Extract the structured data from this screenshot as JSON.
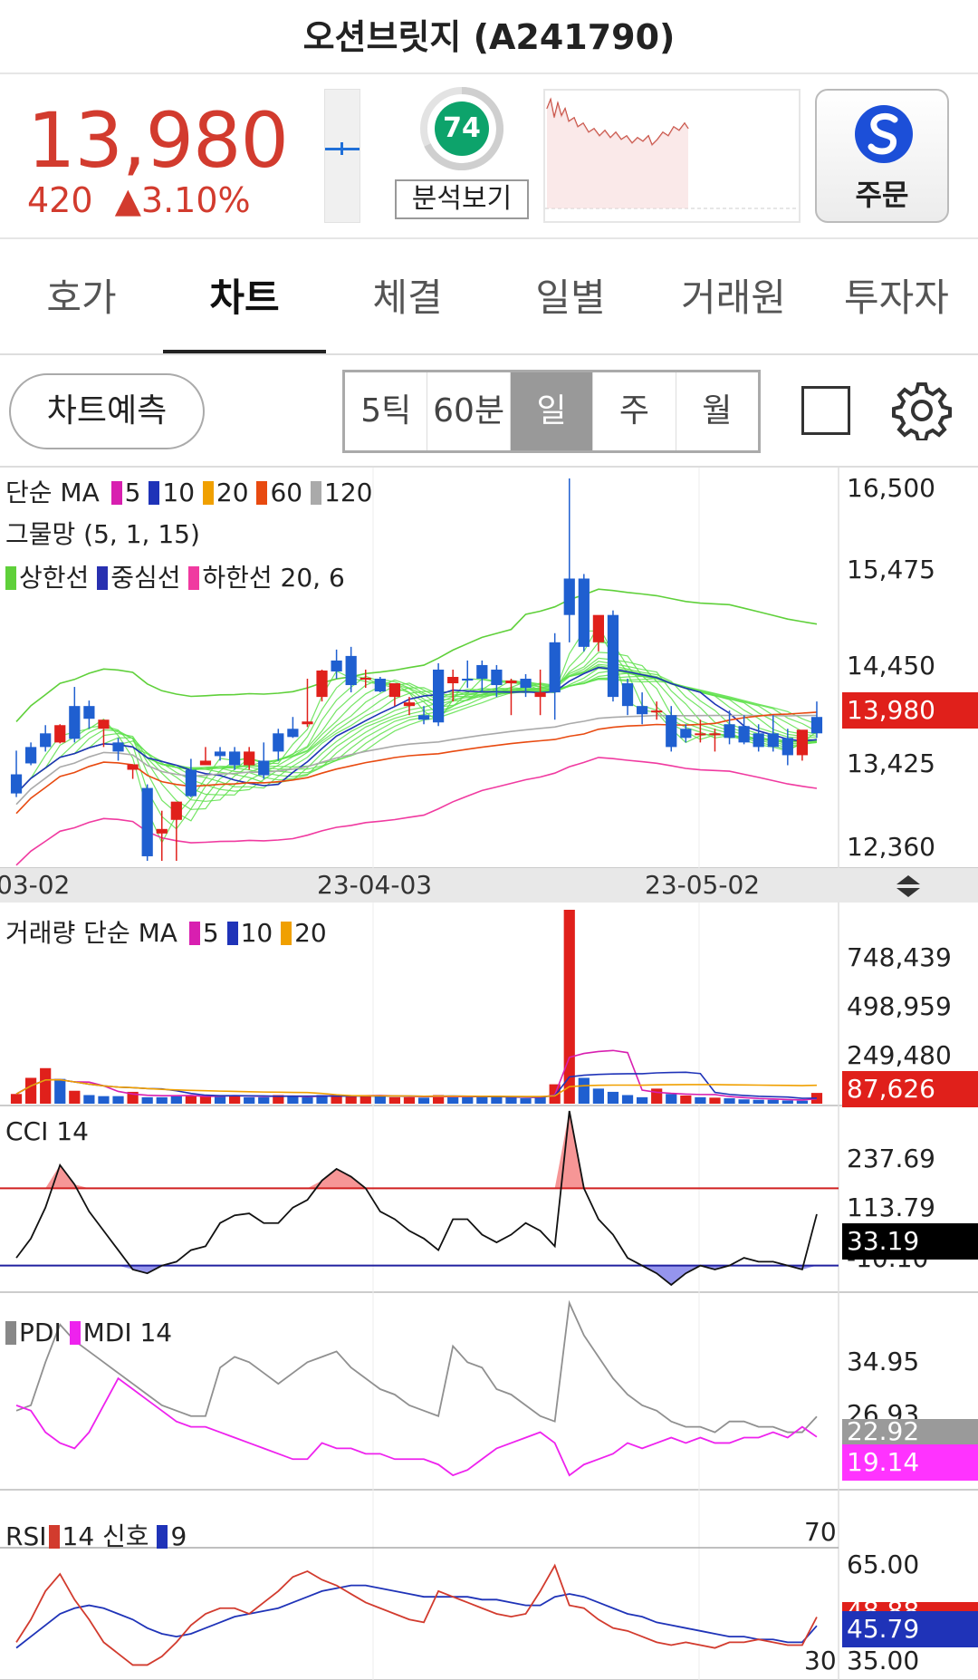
{
  "title": "오션브릿지 (A241790)",
  "quote": {
    "price": "13,980",
    "change": "420",
    "change_pct": "▲3.10%",
    "score": "74",
    "analysis_label": "분석보기",
    "order_label": "주문",
    "up_color": "#d23b2e"
  },
  "tabs": [
    "호가",
    "차트",
    "체결",
    "일별",
    "거래원",
    "투자자"
  ],
  "selected_tab": "차트",
  "toolbar": {
    "predict_label": "차트예측",
    "periods": [
      "5틱",
      "60분",
      "일",
      "주",
      "월"
    ],
    "selected_period": "일",
    "square_icon": "square-icon",
    "gear_icon": "gear-icon"
  },
  "price_chart": {
    "ma_title": "단순 MA",
    "ma_periods": [
      "5",
      "10",
      "20",
      "60",
      "120"
    ],
    "ma_colors": [
      "#d81fb0",
      "#1f33b8",
      "#f0a000",
      "#e84a10",
      "#aaaaaa"
    ],
    "net_title": "그물망 (5, 1, 15)",
    "band_labels": [
      "상한선",
      "중심선",
      "하한선 20, 6"
    ],
    "band_colors": [
      "#5fd03a",
      "#2830b0",
      "#f03aa0"
    ],
    "y_ticks": [
      "16,500",
      "15,475",
      "14,450",
      "13,425",
      "12,360"
    ],
    "current": "13,980",
    "dates": [
      "03-02",
      "23-04-03",
      "23-05-02"
    ]
  },
  "volume_chart": {
    "title": "거래량 단순 MA",
    "ma_periods": [
      "5",
      "10",
      "20"
    ],
    "ma_colors": [
      "#d81fb0",
      "#1f33b8",
      "#f0a000"
    ],
    "y_ticks": [
      "748,439",
      "498,959",
      "249,480"
    ],
    "current": "87,626"
  },
  "cci_chart": {
    "title": "CCI 14",
    "y_ticks": [
      "237.69",
      "113.79",
      "-10.10"
    ],
    "current": "33.19"
  },
  "dmi_chart": {
    "labels": [
      "PDI",
      "MDI 14"
    ],
    "colors": [
      "#888888",
      "#ee22ee"
    ],
    "y_ticks": [
      "34.95",
      "26.93"
    ],
    "pdi_current": "22.92",
    "mdi_current": "19.14"
  },
  "rsi_chart": {
    "title": "RSI",
    "period_label": "14 신호",
    "signal_label": "9",
    "colors": [
      "#d23b2e",
      "#1f33b8"
    ],
    "upper": "70",
    "lower": "30",
    "y_ticks": [
      "65.00",
      "35.00"
    ],
    "rsi_current": "48.88",
    "signal_current": "45.79"
  },
  "chart_data": {
    "type": "candlestick",
    "y_axis": [
      12360,
      16500
    ],
    "candles": [
      [
        13350,
        13610,
        13140,
        13100
      ],
      [
        13650,
        13700,
        13470,
        13450
      ],
      [
        13800,
        13890,
        13650,
        13600
      ],
      [
        13700,
        13900,
        13890,
        13690
      ],
      [
        14100,
        14310,
        13740,
        13700
      ],
      [
        14100,
        14160,
        13960,
        13850
      ],
      [
        13850,
        13850,
        13950,
        13650
      ],
      [
        13700,
        13750,
        13600,
        13500
      ],
      [
        13400,
        13460,
        13460,
        13300
      ],
      [
        13200,
        13240,
        12450,
        12400
      ],
      [
        12700,
        12950,
        12750,
        12400
      ],
      [
        12850,
        12900,
        13050,
        12400
      ],
      [
        13400,
        13520,
        13110,
        13100
      ],
      [
        13450,
        13650,
        13500,
        13450
      ],
      [
        13600,
        13650,
        13550,
        13500
      ],
      [
        13600,
        13650,
        13450,
        13400
      ],
      [
        13450,
        13650,
        13600,
        13400
      ],
      [
        13500,
        13700,
        13340,
        13300
      ],
      [
        13800,
        13850,
        13600,
        13500
      ],
      [
        13850,
        13980,
        13760,
        13750
      ],
      [
        13900,
        14400,
        13930,
        13870
      ],
      [
        14200,
        14500,
        14490,
        14150
      ],
      [
        14600,
        14720,
        14480,
        14400
      ],
      [
        14650,
        14750,
        14330,
        14250
      ],
      [
        14400,
        14500,
        14410,
        14300
      ],
      [
        14400,
        14420,
        14260,
        14250
      ],
      [
        14200,
        14300,
        14350,
        14100
      ],
      [
        14100,
        14200,
        14140,
        14000
      ],
      [
        14000,
        14100,
        13950,
        13900
      ],
      [
        14500,
        14570,
        13920,
        13880
      ],
      [
        14350,
        14500,
        14420,
        14150
      ],
      [
        14400,
        14600,
        14380,
        14300
      ],
      [
        14550,
        14600,
        14400,
        14250
      ],
      [
        14500,
        14550,
        14330,
        14200
      ],
      [
        14350,
        14400,
        14380,
        14000
      ],
      [
        14400,
        14450,
        14300,
        14200
      ],
      [
        14200,
        14500,
        14250,
        14000
      ],
      [
        14800,
        14900,
        14250,
        13950
      ],
      [
        15500,
        16600,
        15100,
        14800
      ],
      [
        15500,
        15550,
        14750,
        14700
      ],
      [
        14800,
        15050,
        15100,
        14700
      ],
      [
        15100,
        15150,
        14200,
        14150
      ],
      [
        14350,
        14400,
        14100,
        14000
      ],
      [
        14100,
        14250,
        14010,
        13900
      ],
      [
        14050,
        14150,
        14050,
        13950
      ],
      [
        14000,
        14100,
        13650,
        13600
      ],
      [
        13850,
        13900,
        13750,
        13700
      ],
      [
        13800,
        13950,
        13800,
        13700
      ],
      [
        13800,
        13850,
        13800,
        13600
      ],
      [
        13900,
        14050,
        13750,
        13680
      ],
      [
        13880,
        14000,
        13700,
        13680
      ],
      [
        13800,
        13900,
        13650,
        13600
      ],
      [
        13800,
        14000,
        13650,
        13600
      ],
      [
        13750,
        13850,
        13560,
        13450
      ],
      [
        13560,
        13740,
        13840,
        13500
      ],
      [
        13980,
        14150,
        13800,
        13750
      ]
    ],
    "volume": [
      [
        45,
        "u"
      ],
      [
        120,
        "u"
      ],
      [
        165,
        "u"
      ],
      [
        115,
        "d"
      ],
      [
        60,
        "u"
      ],
      [
        40,
        "d"
      ],
      [
        35,
        "d"
      ],
      [
        35,
        "d"
      ],
      [
        55,
        "u"
      ],
      [
        30,
        "d"
      ],
      [
        30,
        "d"
      ],
      [
        35,
        "d"
      ],
      [
        40,
        "u"
      ],
      [
        35,
        "u"
      ],
      [
        35,
        "d"
      ],
      [
        40,
        "u"
      ],
      [
        30,
        "d"
      ],
      [
        30,
        "d"
      ],
      [
        40,
        "u"
      ],
      [
        35,
        "d"
      ],
      [
        30,
        "d"
      ],
      [
        40,
        "d"
      ],
      [
        40,
        "u"
      ],
      [
        35,
        "u"
      ],
      [
        40,
        "u"
      ],
      [
        35,
        "d"
      ],
      [
        30,
        "u"
      ],
      [
        30,
        "u"
      ],
      [
        28,
        "d"
      ],
      [
        40,
        "u"
      ],
      [
        35,
        "d"
      ],
      [
        32,
        "d"
      ],
      [
        30,
        "d"
      ],
      [
        30,
        "d"
      ],
      [
        30,
        "d"
      ],
      [
        25,
        "d"
      ],
      [
        30,
        "d"
      ],
      [
        90,
        "u"
      ],
      [
        900,
        "u"
      ],
      [
        120,
        "d"
      ],
      [
        70,
        "d"
      ],
      [
        55,
        "d"
      ],
      [
        40,
        "d"
      ],
      [
        30,
        "d"
      ],
      [
        70,
        "u"
      ],
      [
        45,
        "d"
      ],
      [
        38,
        "u"
      ],
      [
        30,
        "d"
      ],
      [
        28,
        "u"
      ],
      [
        25,
        "d"
      ],
      [
        20,
        "d"
      ],
      [
        18,
        "d"
      ],
      [
        18,
        "d"
      ],
      [
        15,
        "d"
      ],
      [
        14,
        "d"
      ],
      [
        50,
        "u"
      ]
    ],
    "cci": [
      -80,
      -30,
      50,
      160,
      110,
      40,
      -10,
      -60,
      -110,
      -120,
      -100,
      -90,
      -60,
      -50,
      10,
      30,
      35,
      10,
      10,
      50,
      70,
      120,
      150,
      130,
      100,
      40,
      20,
      -10,
      -30,
      -60,
      20,
      20,
      -20,
      -40,
      -20,
      10,
      -10,
      -50,
      300,
      100,
      20,
      -20,
      -80,
      -100,
      -120,
      -150,
      -120,
      -100,
      -110,
      -100,
      -80,
      -90,
      -90,
      -100,
      -110,
      33
    ],
    "pdi": [
      24,
      25,
      33,
      40,
      37,
      35,
      33,
      31,
      29,
      27,
      25,
      24,
      23,
      23,
      32,
      34,
      33,
      31,
      29,
      31,
      33,
      34,
      35,
      32,
      30,
      28,
      27,
      25,
      24,
      23,
      36,
      33,
      32,
      28,
      27,
      25,
      23,
      22,
      44,
      38,
      34,
      30,
      27,
      25,
      24,
      22,
      21,
      21,
      20,
      22,
      22,
      21,
      21,
      20,
      20,
      22.92
    ],
    "mdi": [
      25,
      24,
      20,
      18,
      17,
      20,
      25,
      30,
      28,
      26,
      24,
      22,
      21,
      21,
      20,
      19,
      18,
      17,
      16,
      15,
      15,
      18,
      17,
      17,
      16,
      16,
      15,
      15,
      15,
      14,
      12,
      13,
      15,
      17,
      18,
      19,
      20,
      18,
      12,
      14,
      15,
      16,
      18,
      17,
      18,
      19,
      18,
      19,
      18,
      18,
      19,
      19,
      20,
      19,
      21,
      19.14
    ],
    "rsi": [
      40,
      48,
      58,
      64,
      55,
      48,
      40,
      36,
      32,
      32,
      35,
      40,
      46,
      50,
      52,
      52,
      50,
      54,
      58,
      63,
      65,
      62,
      60,
      57,
      54,
      52,
      50,
      48,
      47,
      58,
      56,
      54,
      52,
      50,
      49,
      50,
      58,
      67,
      53,
      52,
      48,
      45,
      44,
      42,
      40,
      39,
      40,
      39,
      38,
      40,
      40,
      41,
      40,
      39,
      39,
      48.88
    ],
    "signal": [
      38,
      42,
      46,
      50,
      52,
      53,
      52,
      50,
      48,
      45,
      43,
      42,
      43,
      45,
      47,
      49,
      50,
      51,
      52,
      54,
      56,
      58,
      59,
      60,
      60,
      59,
      58,
      57,
      56,
      56,
      56,
      56,
      55,
      55,
      54,
      53,
      53,
      56,
      57,
      56,
      54,
      52,
      50,
      49,
      47,
      46,
      45,
      44,
      43,
      42,
      42,
      41,
      41,
      40,
      40,
      45.79
    ]
  }
}
